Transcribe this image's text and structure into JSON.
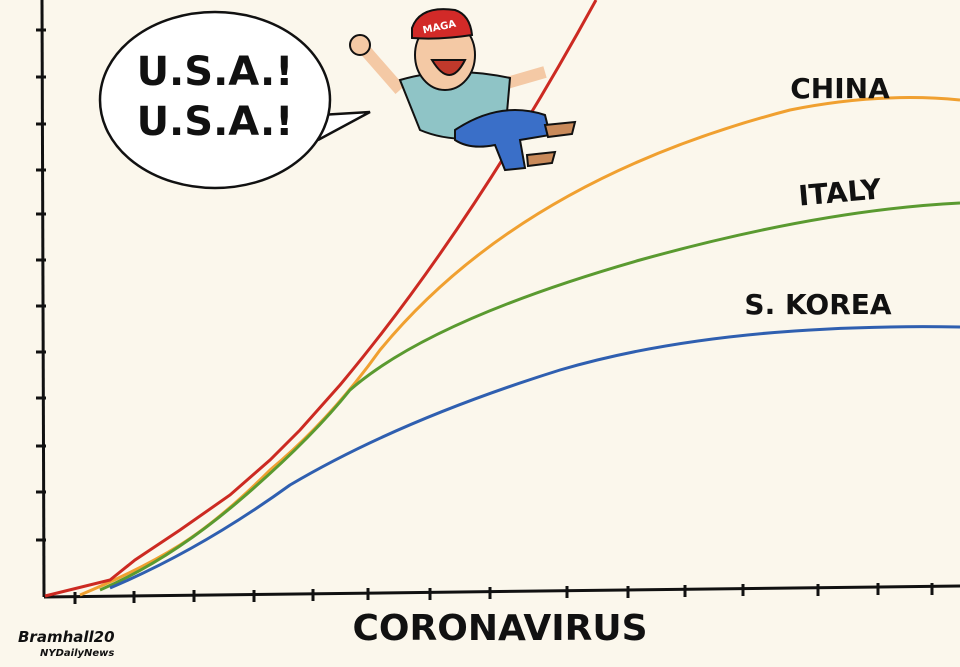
{
  "speech_bubble": {
    "lines": [
      "U.S.A.!",
      "U.S.A.!"
    ]
  },
  "line_labels": [
    "CHINA",
    "ITALY",
    "S. KOREA"
  ],
  "axis_label": "CORONAVIRUS",
  "hat_text": "MAGA",
  "signature": {
    "artist": "Bramhall20",
    "publication": "NYDailyNews"
  }
}
